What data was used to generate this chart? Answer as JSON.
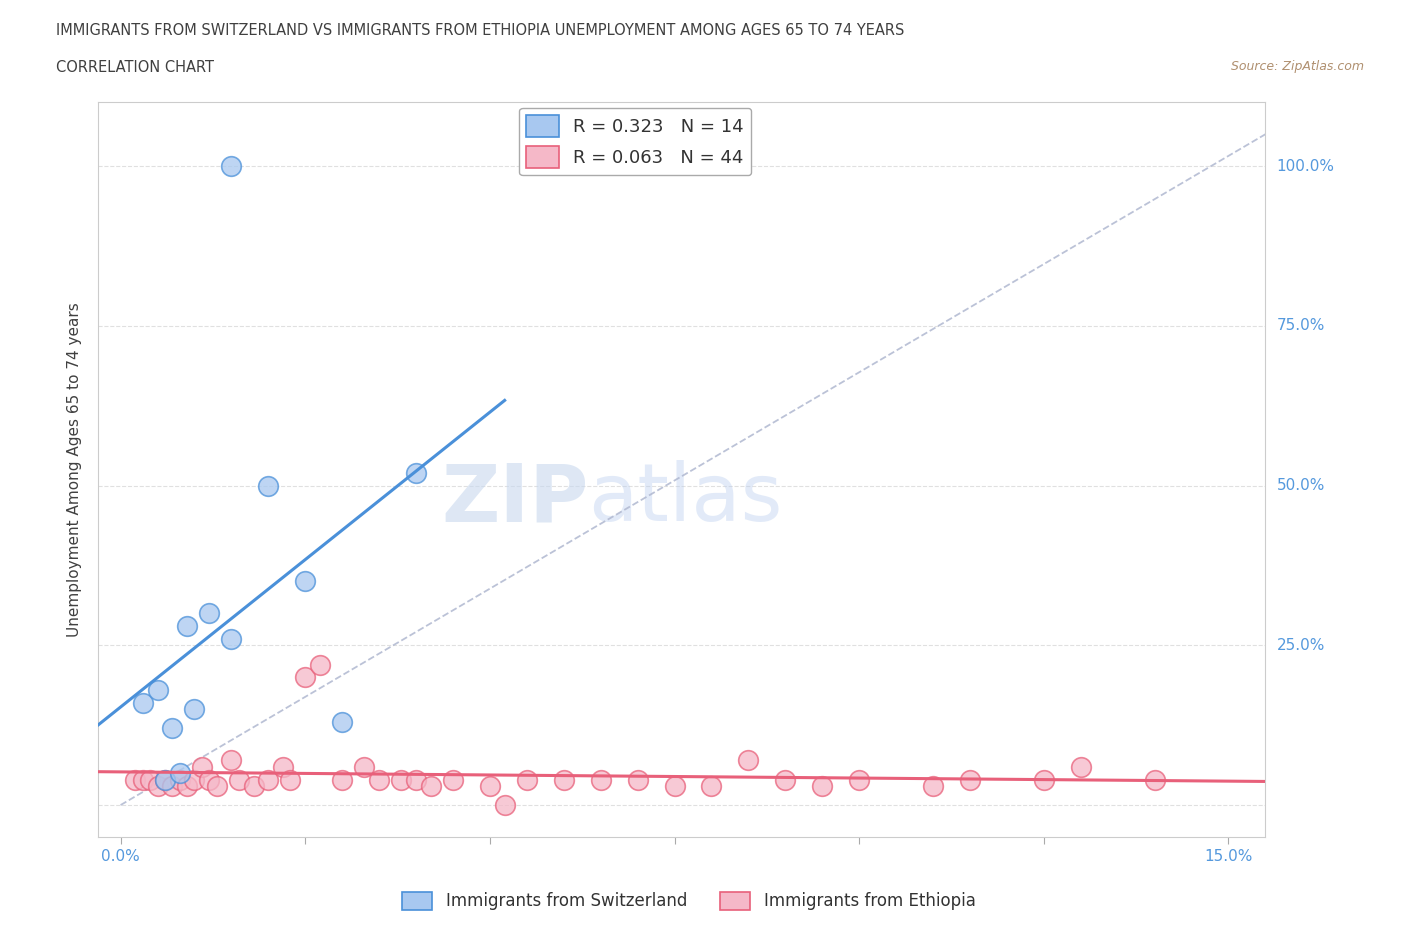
{
  "title_line1": "IMMIGRANTS FROM SWITZERLAND VS IMMIGRANTS FROM ETHIOPIA UNEMPLOYMENT AMONG AGES 65 TO 74 YEARS",
  "title_line2": "CORRELATION CHART",
  "source": "Source: ZipAtlas.com",
  "ylabel": "Unemployment Among Ages 65 to 74 years",
  "swiss_color": "#a8c8f0",
  "ethiopia_color": "#f5b8c8",
  "swiss_line_color": "#4a90d9",
  "ethiopia_line_color": "#e8607a",
  "trendline_color": "#aaaacc",
  "watermark_zip": "ZIP",
  "watermark_atlas": "atlas",
  "swiss_scatter_x": [
    0.003,
    0.005,
    0.006,
    0.007,
    0.008,
    0.009,
    0.01,
    0.012,
    0.015,
    0.02,
    0.025,
    0.03,
    0.04,
    0.015
  ],
  "swiss_scatter_y": [
    0.16,
    0.18,
    0.04,
    0.12,
    0.05,
    0.28,
    0.15,
    0.3,
    1.0,
    0.5,
    0.35,
    0.13,
    0.52,
    0.26
  ],
  "ethiopia_scatter_x": [
    0.002,
    0.003,
    0.004,
    0.005,
    0.006,
    0.007,
    0.008,
    0.009,
    0.01,
    0.011,
    0.012,
    0.013,
    0.015,
    0.016,
    0.018,
    0.02,
    0.022,
    0.023,
    0.025,
    0.027,
    0.03,
    0.033,
    0.035,
    0.038,
    0.04,
    0.042,
    0.045,
    0.05,
    0.052,
    0.055,
    0.06,
    0.065,
    0.07,
    0.075,
    0.08,
    0.085,
    0.09,
    0.095,
    0.1,
    0.11,
    0.115,
    0.125,
    0.13,
    0.14
  ],
  "ethiopia_scatter_y": [
    0.04,
    0.04,
    0.04,
    0.03,
    0.04,
    0.03,
    0.04,
    0.03,
    0.04,
    0.06,
    0.04,
    0.03,
    0.07,
    0.04,
    0.03,
    0.04,
    0.06,
    0.04,
    0.2,
    0.22,
    0.04,
    0.06,
    0.04,
    0.04,
    0.04,
    0.03,
    0.04,
    0.03,
    0.0,
    0.04,
    0.04,
    0.04,
    0.04,
    0.03,
    0.03,
    0.07,
    0.04,
    0.03,
    0.04,
    0.03,
    0.04,
    0.04,
    0.06,
    0.04
  ],
  "xlim": [
    -0.003,
    0.155
  ],
  "ylim": [
    -0.05,
    1.1
  ],
  "x_tick_positions": [
    0.0,
    0.025,
    0.05,
    0.075,
    0.1,
    0.125,
    0.15
  ],
  "y_tick_positions": [
    0.0,
    0.25,
    0.5,
    0.75,
    1.0
  ],
  "fig_bg": "#ffffff",
  "plot_bg": "#ffffff",
  "grid_color": "#dddddd",
  "title_color": "#404040",
  "tick_color": "#5599dd",
  "source_color": "#b09070"
}
